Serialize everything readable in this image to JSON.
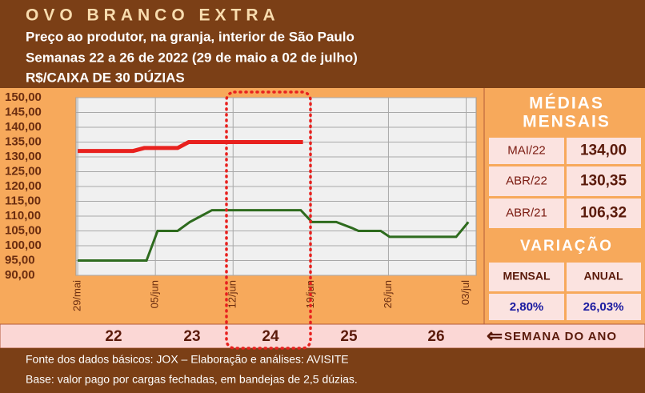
{
  "chart_data": {
    "type": "line",
    "title": "OVO BRANCO EXTRA",
    "subtitle": "Preço ao produtor, na granja, interior de São Paulo",
    "period": "Semanas 22 a 26 de 2022 (29 de maio a 02 de julho)",
    "unit": "R$/CAIXA DE 30 DÚZIAS",
    "xlim": [
      -0.15,
      35.9
    ],
    "xticks": [
      {
        "value": 0,
        "label": "29/mai"
      },
      {
        "value": 7,
        "label": "05/jun"
      },
      {
        "value": 14,
        "label": "12/jun"
      },
      {
        "value": 21,
        "label": "19/jun"
      },
      {
        "value": 28,
        "label": "26/jun"
      },
      {
        "value": 35,
        "label": "03/jul"
      }
    ],
    "ylim": [
      90,
      150
    ],
    "yticks": [
      {
        "value": 90,
        "label": "90,00"
      },
      {
        "value": 95,
        "label": "95,00"
      },
      {
        "value": 100,
        "label": "100,00"
      },
      {
        "value": 105,
        "label": "105,00"
      },
      {
        "value": 110,
        "label": "110,00"
      },
      {
        "value": 115,
        "label": "115,00"
      },
      {
        "value": 120,
        "label": "120,00"
      },
      {
        "value": 125,
        "label": "125,00"
      },
      {
        "value": 130,
        "label": "130,00"
      },
      {
        "value": 135,
        "label": "135,00"
      },
      {
        "value": 140,
        "label": "140,00"
      },
      {
        "value": 145,
        "label": "145,00"
      },
      {
        "value": 150,
        "label": "150,00"
      }
    ],
    "grid": true,
    "series": [
      {
        "color": "#e8211e",
        "x": [
          0,
          5,
          6,
          9,
          10,
          20.3
        ],
        "values": [
          132,
          132,
          133,
          133,
          135,
          135
        ]
      },
      {
        "color": "#2e6b1e",
        "x": [
          0,
          6.2,
          7.2,
          9,
          10.1,
          12.1,
          20.1,
          21.1,
          23.3,
          24.7,
          25.3,
          27.3,
          28.1,
          34.1,
          35.2
        ],
        "values": [
          95,
          95,
          105,
          105,
          108,
          112,
          112,
          108,
          108,
          106,
          105,
          105,
          103,
          103,
          108
        ]
      }
    ]
  },
  "weeks": {
    "labels": [
      "22",
      "23",
      "24",
      "25",
      "26"
    ],
    "caption": "SEMANA DO ANO"
  },
  "monthly_averages": {
    "title": [
      "MÉDIAS",
      "MENSAIS"
    ],
    "rows": [
      [
        "MAI/22",
        "134,00"
      ],
      [
        "ABR/22",
        "130,35"
      ],
      [
        "ABR/21",
        "106,32"
      ]
    ]
  },
  "variation": {
    "title": "VARIAÇÃO",
    "headers": [
      "MENSAL",
      "ANUAL"
    ],
    "values": [
      "2,80%",
      "26,03%"
    ]
  },
  "footer": [
    "Fonte dos dados básicos: JOX – Elaboração e análises: AVISITE",
    "Base: valor pago por cargas fechadas, em bandejas de 2,5 dúzias."
  ]
}
